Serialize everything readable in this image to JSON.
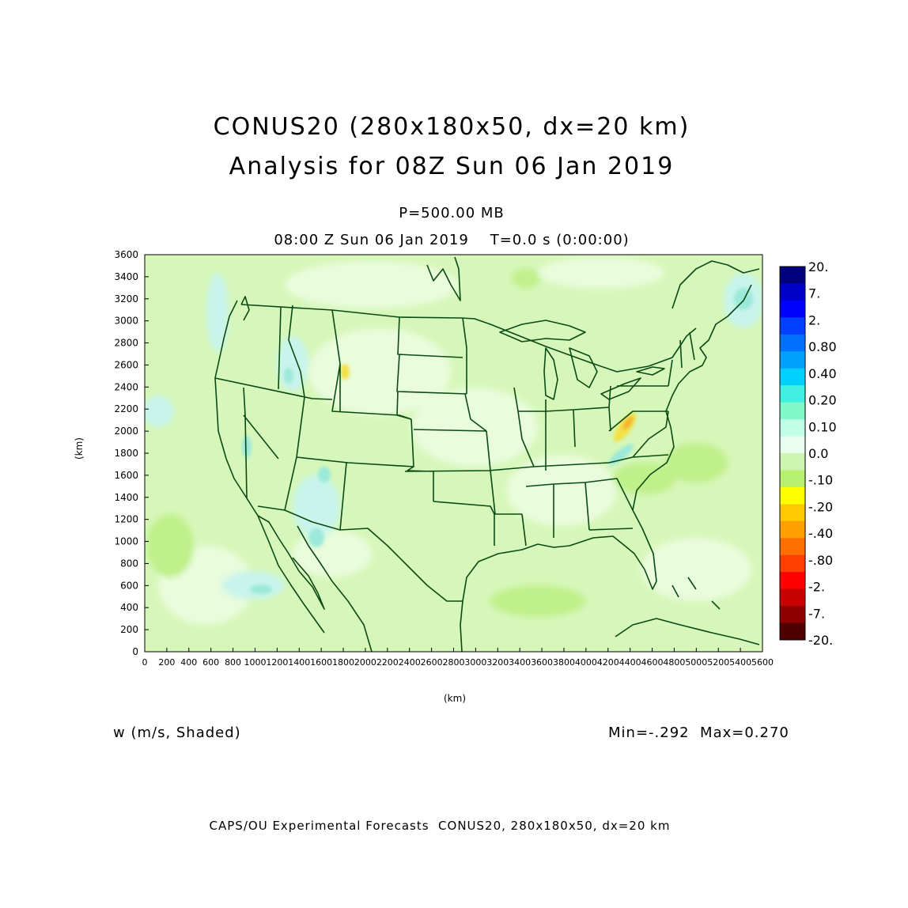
{
  "title_line1": "CONUS20 (280x180x50, dx=20 km)",
  "title_line2": "Analysis for 08Z Sun 06 Jan 2019",
  "level": "P=500.00 MB",
  "valid_time": "08:00 Z Sun 06 Jan 2019    T=0.0 s (0:00:00)",
  "variable": "w (m/s, Shaded)",
  "min_max": "Min=-.292  Max=0.270",
  "credit": "CAPS/OU Experimental Forecasts  CONUS20, 280x180x50, dx=20 km",
  "axis_unit_y": "(km)",
  "axis_unit_x": "(km)",
  "y_ticks": [
    "0",
    "200",
    "400",
    "600",
    "800",
    "1000",
    "1200",
    "1400",
    "1600",
    "1800",
    "2000",
    "2200",
    "2400",
    "2600",
    "2800",
    "3000",
    "3200",
    "3400",
    "3600"
  ],
  "x_ticks": [
    "0",
    "200",
    "400",
    "600",
    "800",
    "1000",
    "1200",
    "1400",
    "1600",
    "1800",
    "2000",
    "2200",
    "2400",
    "2600",
    "2800",
    "3000",
    "3200",
    "3400",
    "3600",
    "3800",
    "4000",
    "4200",
    "4400",
    "4600",
    "4800",
    "5000",
    "5200",
    "5400",
    "5600"
  ],
  "colorbar": {
    "labels": [
      "20.",
      "7.",
      "2.",
      "0.80",
      "0.40",
      "0.20",
      "0.10",
      "0.0",
      "-.10",
      "-.20",
      "-.40",
      "-.80",
      "-2.",
      "-7.",
      "-20."
    ],
    "colors": [
      "#00007f",
      "#0000c8",
      "#0000ff",
      "#0040ff",
      "#0070ff",
      "#00a0ff",
      "#00d0ff",
      "#40f0e0",
      "#80f8c8",
      "#c0ffe8",
      "#e8fff0",
      "#ccf5b0",
      "#b8f070",
      "#ffff00",
      "#ffc800",
      "#ffa000",
      "#ff7000",
      "#ff4000",
      "#ff0000",
      "#c80000",
      "#900000",
      "#500000"
    ]
  },
  "field_colors": {
    "background": "#d6f7b9",
    "light": "#e9fcdc",
    "neg_weak": "#bff08a",
    "pos_weak": "#c8f4ec",
    "pos_mid": "#9be9d9",
    "pos_strong": "#6de0d0",
    "neg_strong": "#f2e24a",
    "neg_core": "#f5b02a",
    "outline": "#0b4a14"
  }
}
